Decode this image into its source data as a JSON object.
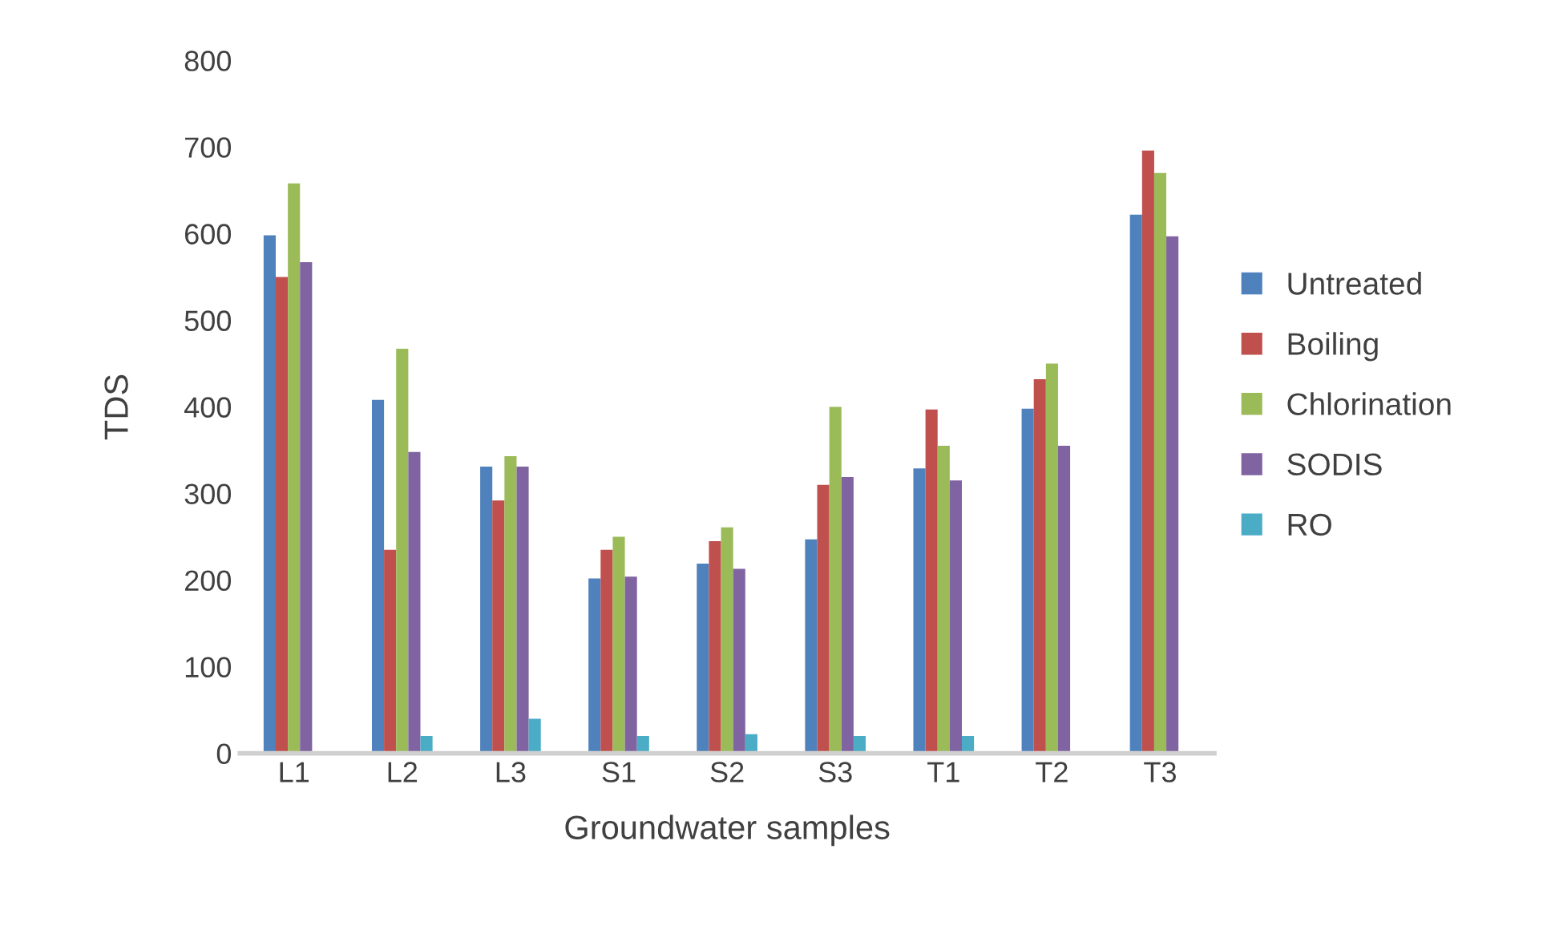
{
  "chart_data": {
    "type": "bar",
    "xlabel": "Groundwater samples",
    "ylabel": "TDS",
    "categories": [
      "L1",
      "L2",
      "L3",
      "S1",
      "S2",
      "S3",
      "T1",
      "T2",
      "T3"
    ],
    "series": [
      {
        "name": "Untreated",
        "color": "#4f81bd",
        "values": [
          598,
          408,
          331,
          202,
          219,
          247,
          329,
          398,
          622
        ]
      },
      {
        "name": "Boiling",
        "color": "#c0504d",
        "values": [
          550,
          235,
          292,
          235,
          245,
          310,
          397,
          432,
          696
        ]
      },
      {
        "name": "Chlorination",
        "color": "#9bbb59",
        "values": [
          658,
          467,
          343,
          250,
          261,
          400,
          355,
          450,
          670
        ]
      },
      {
        "name": "SODIS",
        "color": "#8064a2",
        "values": [
          567,
          348,
          331,
          204,
          213,
          319,
          315,
          355,
          597
        ]
      },
      {
        "name": "RO",
        "color": "#4bacc6",
        "values": [
          null,
          20,
          40,
          20,
          22,
          20,
          20,
          null,
          null
        ]
      }
    ],
    "ylim": [
      0,
      800
    ],
    "yticks": [
      0,
      100,
      200,
      300,
      400,
      500,
      600,
      700,
      800
    ],
    "grid": false,
    "legend": "right"
  }
}
